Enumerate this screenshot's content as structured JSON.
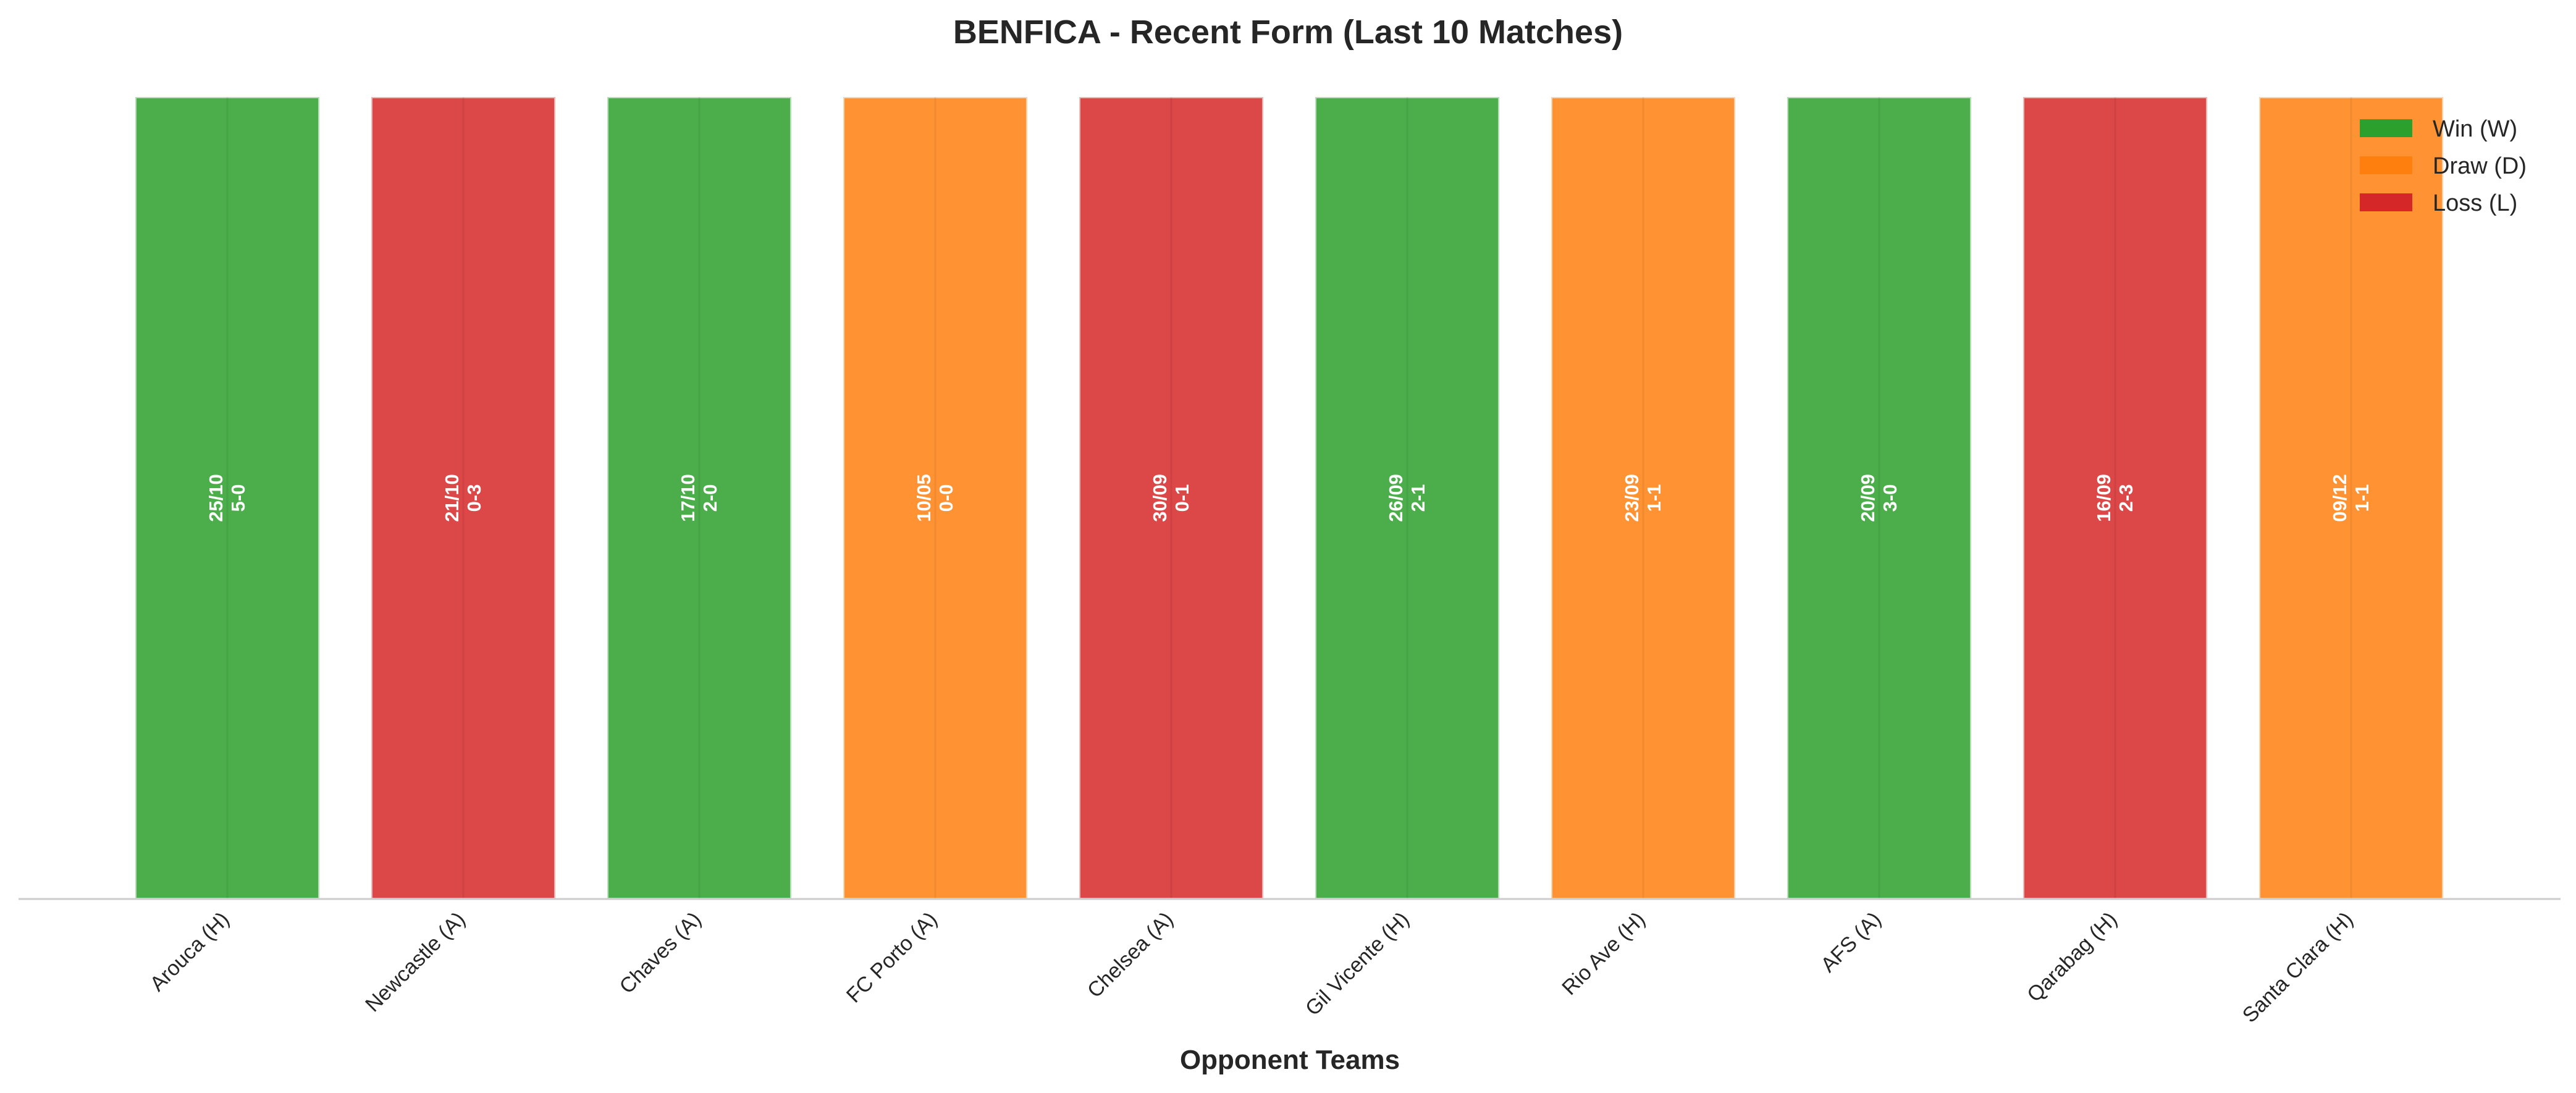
{
  "chart_data": {
    "type": "bar",
    "title": "BENFICA - Recent Form (Last 10 Matches)",
    "xlabel": "Opponent Teams",
    "ylabel": "",
    "grid": false,
    "legend_position": "top-right",
    "categories": [
      "Arouca (H)",
      "Newcastle (A)",
      "Chaves (A)",
      "FC Porto (A)",
      "Chelsea (A)",
      "Gil Vicente (H)",
      "Rio Ave (H)",
      "AFS (A)",
      "Qarabag (H)",
      "Santa Clara (H)"
    ],
    "values": [
      1,
      1,
      1,
      1,
      1,
      1,
      1,
      1,
      1,
      1
    ],
    "ylim": [
      0,
      1
    ],
    "results": [
      "W",
      "L",
      "W",
      "D",
      "L",
      "W",
      "D",
      "W",
      "L",
      "D"
    ],
    "dates": [
      "25/10",
      "21/10",
      "17/10",
      "10/05",
      "30/09",
      "26/09",
      "23/09",
      "20/09",
      "16/09",
      "09/12"
    ],
    "scores": [
      "5-0",
      "0-3",
      "2-0",
      "0-0",
      "0-1",
      "2-1",
      "1-1",
      "3-0",
      "2-3",
      "1-1"
    ],
    "legend": [
      {
        "key": "W",
        "label": "Win (W)",
        "color": "#2ca02c"
      },
      {
        "key": "D",
        "label": "Draw (D)",
        "color": "#ff7f0e"
      },
      {
        "key": "L",
        "label": "Loss (L)",
        "color": "#d62728"
      }
    ]
  }
}
